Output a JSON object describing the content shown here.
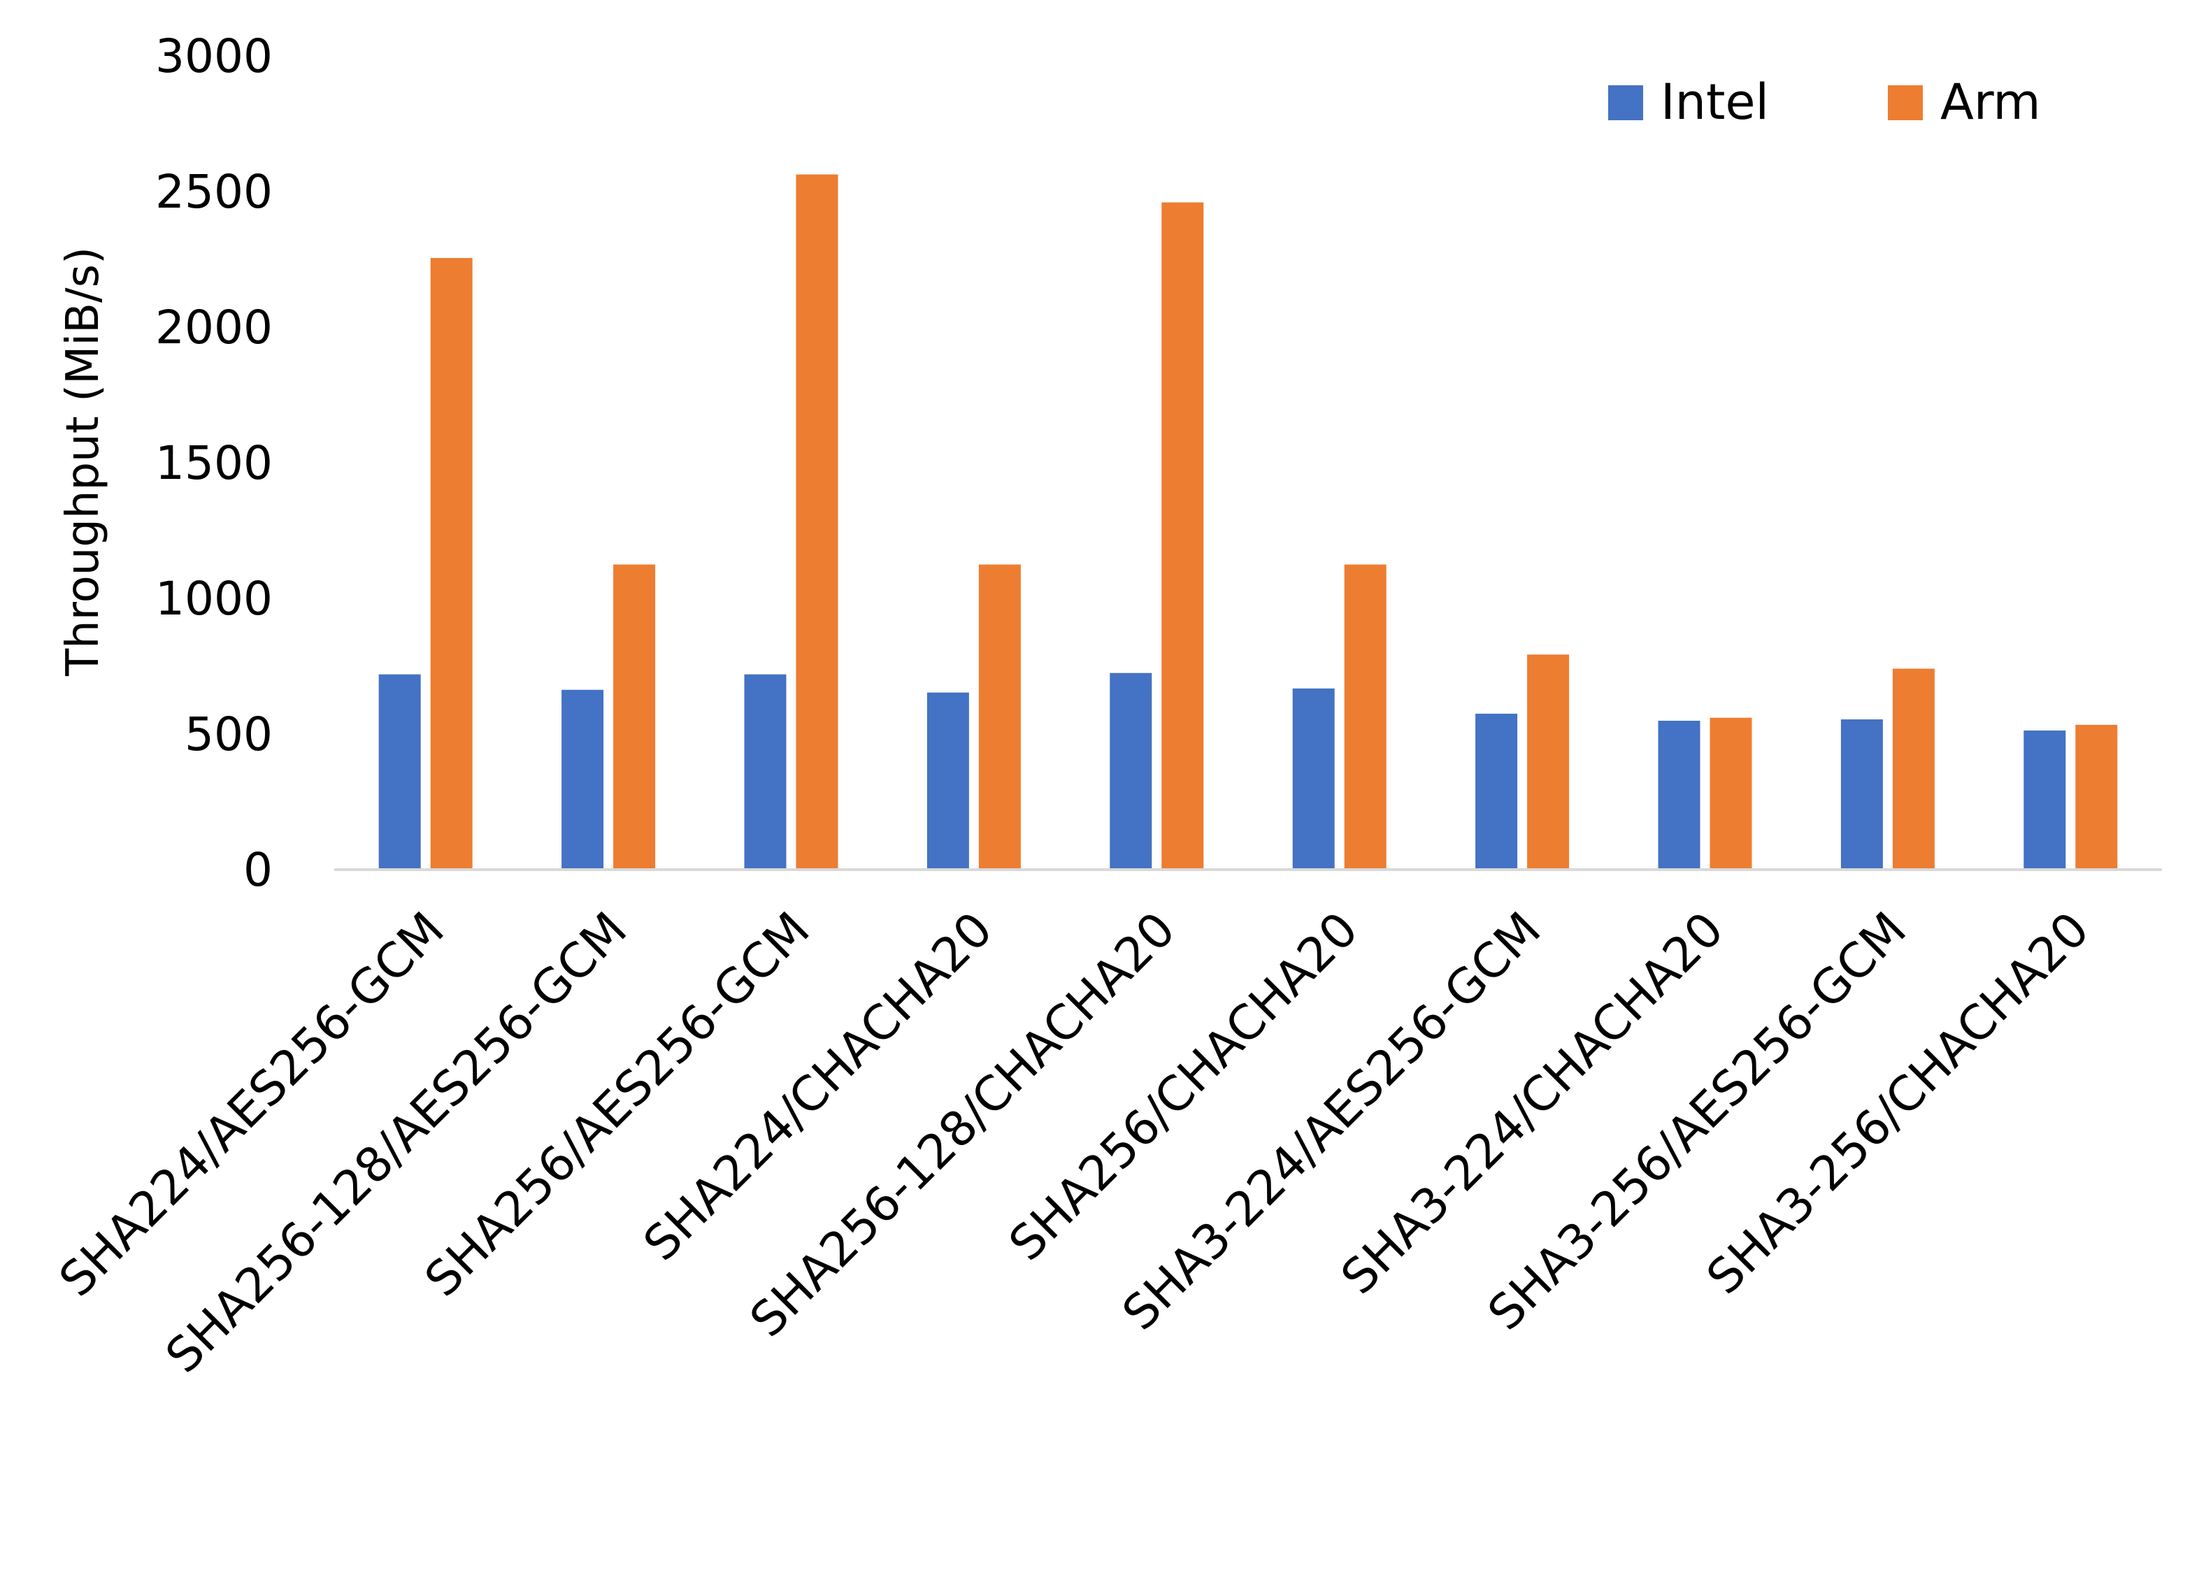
{
  "chart_data": {
    "type": "bar",
    "title": "",
    "xlabel": "",
    "ylabel": "Throughput (MiB/s)",
    "ylim": [
      0,
      3000
    ],
    "yticks": [
      0,
      500,
      1000,
      1500,
      2000,
      2500,
      3000
    ],
    "grid": false,
    "legend_placement": "top-right",
    "categories": [
      "SHA224/AES256-GCM",
      "SHA256-128/AES256-GCM",
      "SHA256/AES256-GCM",
      "SHA224/CHACHA20",
      "SHA256-128/CHACHA20",
      "SHA256/CHACHA20",
      "SHA3-224/AES256-GCM",
      "SHA3-224/CHACHA20",
      "SHA3-256/AES256-GCM",
      "SHA3-256/CHACHA20"
    ],
    "series": [
      {
        "name": "Intel",
        "color": "#4472C4",
        "values": [
          720,
          663,
          720,
          653,
          725,
          668,
          575,
          549,
          554,
          513
        ]
      },
      {
        "name": "Arm",
        "color": "#ED7D31",
        "values": [
          2255,
          1125,
          2563,
          1125,
          2460,
          1125,
          793,
          560,
          741,
          534
        ]
      }
    ]
  }
}
